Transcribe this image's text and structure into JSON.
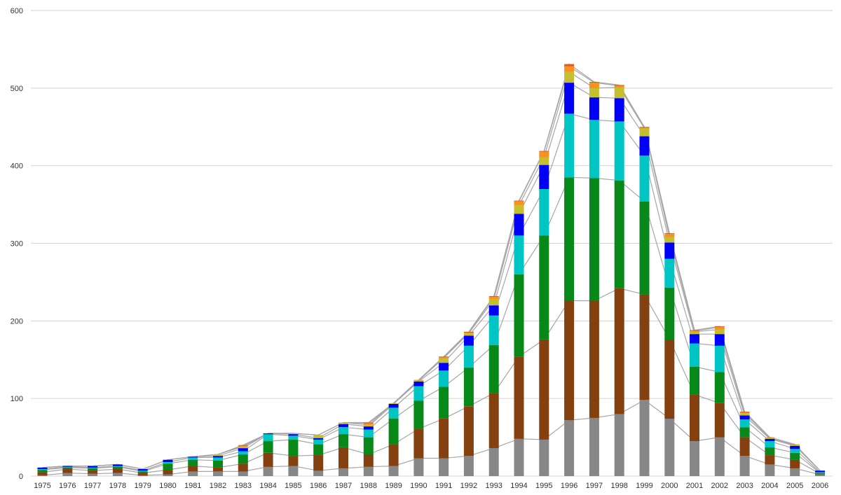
{
  "chart_data": {
    "type": "bar",
    "stacked": true,
    "categories": [
      "1975",
      "1976",
      "1977",
      "1978",
      "1979",
      "1980",
      "1981",
      "1982",
      "1983",
      "1984",
      "1985",
      "1986",
      "1987",
      "1988",
      "1989",
      "1990",
      "1991",
      "1992",
      "1993",
      "1994",
      "1995",
      "1996",
      "1997",
      "1998",
      "1999",
      "2000",
      "2001",
      "2002",
      "2003",
      "2004",
      "2005",
      "2006"
    ],
    "series": [
      {
        "color": "#878787",
        "values": [
          1,
          4,
          3,
          4,
          1,
          2,
          6,
          6,
          6,
          12,
          13,
          7,
          10,
          12,
          13,
          23,
          23,
          26,
          36,
          48,
          47,
          72,
          75,
          80,
          98,
          74,
          45,
          50,
          26,
          15,
          10,
          2
        ]
      },
      {
        "color": "#84400e",
        "values": [
          4,
          5,
          4,
          5,
          3,
          6,
          7,
          5,
          10,
          18,
          13,
          20,
          27,
          16,
          28,
          38,
          51,
          64,
          71,
          106,
          129,
          154,
          151,
          162,
          136,
          102,
          60,
          44,
          24,
          12,
          11,
          1
        ]
      },
      {
        "color": "#078819",
        "values": [
          3,
          2,
          3,
          3,
          2,
          8,
          8,
          9,
          12,
          15,
          21,
          14,
          17,
          22,
          33,
          36,
          41,
          50,
          62,
          106,
          134,
          159,
          158,
          139,
          120,
          67,
          36,
          40,
          13,
          10,
          9,
          1
        ]
      },
      {
        "color": "#00c5c5",
        "values": [
          1,
          1,
          1,
          1,
          1,
          2,
          3,
          4,
          4,
          9,
          5,
          6,
          9,
          10,
          14,
          19,
          21,
          28,
          38,
          50,
          60,
          82,
          75,
          76,
          59,
          37,
          30,
          34,
          10,
          8,
          5,
          1
        ]
      },
      {
        "color": "#0000f8",
        "values": [
          2,
          1,
          2,
          2,
          2,
          3,
          1,
          2,
          4,
          1,
          2,
          2,
          4,
          4,
          5,
          6,
          10,
          13,
          13,
          28,
          31,
          40,
          29,
          30,
          25,
          21,
          12,
          15,
          5,
          3,
          4,
          2
        ]
      },
      {
        "color": "#c4bf2e",
        "values": [
          0,
          0,
          0,
          0,
          0,
          0,
          0,
          2,
          2,
          0,
          1,
          4,
          2,
          2,
          1,
          1,
          6,
          3,
          8,
          11,
          10,
          14,
          12,
          14,
          10,
          7,
          3,
          6,
          3,
          1,
          1,
          0
        ]
      },
      {
        "color": "#f8921a",
        "values": [
          0,
          0,
          0,
          0,
          0,
          0,
          0,
          0,
          1,
          0,
          0,
          0,
          0,
          2,
          0,
          1,
          1,
          1,
          3,
          5,
          7,
          7,
          7,
          2,
          1,
          4,
          1,
          3,
          1,
          1,
          1,
          0
        ]
      },
      {
        "color": "#e05d1c",
        "values": [
          0,
          0,
          0,
          0,
          0,
          0,
          0,
          0,
          1,
          0,
          0,
          0,
          0,
          1,
          0,
          0,
          1,
          1,
          1,
          1,
          1,
          3,
          1,
          1,
          1,
          1,
          1,
          1,
          1,
          0,
          0,
          0
        ]
      }
    ],
    "ylim": [
      0,
      600
    ],
    "yticks": [
      0,
      100,
      200,
      300,
      400,
      500,
      600
    ],
    "grid": true,
    "legend": "none"
  }
}
